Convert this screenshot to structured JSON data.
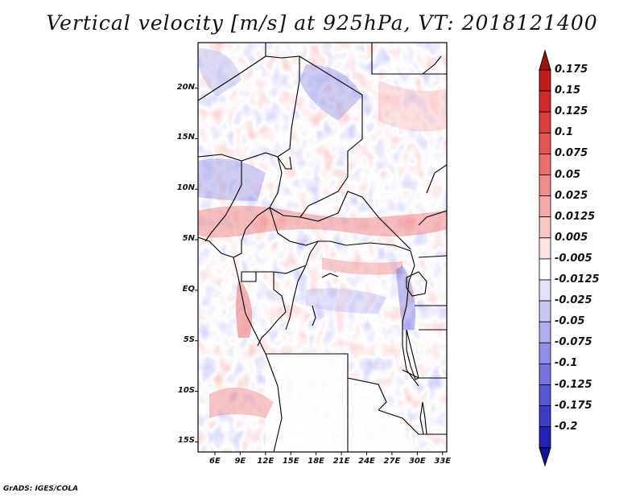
{
  "title": "Vertical velocity [m/s] at 925hPa, VT: 2018121400",
  "credit": "GrADS: IGES/COLA",
  "map": {
    "lon_range": [
      4,
      33.5
    ],
    "lat_range": [
      -16,
      24.5
    ],
    "lat_ticks": [
      {
        "value": 20,
        "label": "20N"
      },
      {
        "value": 15,
        "label": "15N"
      },
      {
        "value": 10,
        "label": "10N"
      },
      {
        "value": 5,
        "label": "5N"
      },
      {
        "value": 0,
        "label": "EQ"
      },
      {
        "value": -5,
        "label": "5S"
      },
      {
        "value": -10,
        "label": "10S"
      },
      {
        "value": -15,
        "label": "15S"
      }
    ],
    "lon_ticks": [
      {
        "value": 6,
        "label": "6E"
      },
      {
        "value": 9,
        "label": "9E"
      },
      {
        "value": 12,
        "label": "12E"
      },
      {
        "value": 15,
        "label": "15E"
      },
      {
        "value": 18,
        "label": "18E"
      },
      {
        "value": 21,
        "label": "21E"
      },
      {
        "value": 24,
        "label": "24E"
      },
      {
        "value": 27,
        "label": "27E"
      },
      {
        "value": 30,
        "label": "30E"
      },
      {
        "value": 33,
        "label": "33E"
      }
    ]
  },
  "colorbar": {
    "levels": [
      {
        "label": "0.175",
        "color": "#c11c1c"
      },
      {
        "label": "0.15",
        "color": "#d22a2a"
      },
      {
        "label": "0.125",
        "color": "#de3d3d"
      },
      {
        "label": "0.1",
        "color": "#e45555"
      },
      {
        "label": "0.075",
        "color": "#ea7070"
      },
      {
        "label": "0.05",
        "color": "#f08c8c"
      },
      {
        "label": "0.025",
        "color": "#f5aaaa"
      },
      {
        "label": "0.0125",
        "color": "#fac6c6"
      },
      {
        "label": "0.005",
        "color": "#fde2e2"
      },
      {
        "label": "-0.005",
        "color": "#ffffff"
      },
      {
        "label": "-0.0125",
        "color": "#e2e2fc"
      },
      {
        "label": "-0.025",
        "color": "#c8c8f6"
      },
      {
        "label": "-0.05",
        "color": "#adadef"
      },
      {
        "label": "-0.075",
        "color": "#9090e6"
      },
      {
        "label": "-0.1",
        "color": "#7575dd"
      },
      {
        "label": "-0.125",
        "color": "#5656d2"
      },
      {
        "label": "-0.175",
        "color": "#3c3cc6"
      },
      {
        "label": "-0.2",
        "color": "#2222b4"
      }
    ],
    "top_arrow_color": "#a01010",
    "bottom_arrow_color": "#14149a"
  }
}
